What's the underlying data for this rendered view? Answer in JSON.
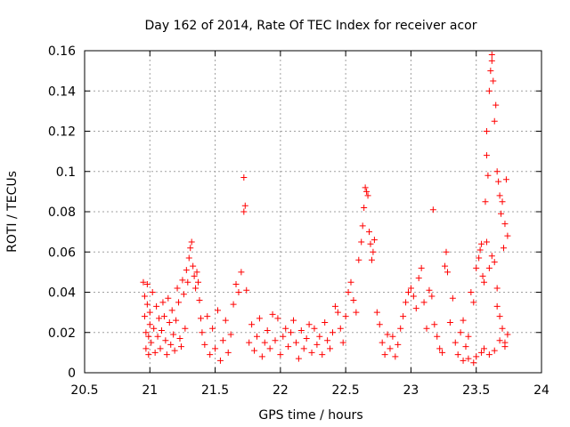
{
  "chart_data": {
    "type": "scatter",
    "title": "Day 162 of 2014, Rate Of TEC Index for receiver acor",
    "xlabel": "GPS time / hours",
    "ylabel": "ROTI / TECUs",
    "xlim": [
      20.5,
      24
    ],
    "ylim": [
      0,
      0.16
    ],
    "xticks": [
      20.5,
      21,
      21.5,
      22,
      22.5,
      23,
      23.5,
      24
    ],
    "xtick_labels": [
      "20.5",
      "21",
      "21.5",
      "22",
      "22.5",
      "23",
      "23.5",
      "24"
    ],
    "yticks": [
      0,
      0.02,
      0.04,
      0.06,
      0.08,
      0.1,
      0.12,
      0.14,
      0.16
    ],
    "ytick_labels": [
      "0",
      "0.02",
      "0.04",
      "0.06",
      "0.08",
      "0.1",
      "0.12",
      "0.14",
      "0.16"
    ],
    "grid": true,
    "marker": "+",
    "color": "#ff0000",
    "series": [
      {
        "name": "ROTI",
        "points": [
          [
            20.95,
            0.045
          ],
          [
            20.96,
            0.038
          ],
          [
            20.96,
            0.028
          ],
          [
            20.97,
            0.02
          ],
          [
            20.97,
            0.012
          ],
          [
            20.98,
            0.034
          ],
          [
            20.98,
            0.044
          ],
          [
            20.99,
            0.018
          ],
          [
            20.99,
            0.009
          ],
          [
            21.0,
            0.03
          ],
          [
            21.0,
            0.024
          ],
          [
            21.01,
            0.015
          ],
          [
            21.02,
            0.04
          ],
          [
            21.03,
            0.022
          ],
          [
            21.04,
            0.01
          ],
          [
            21.05,
            0.033
          ],
          [
            21.06,
            0.018
          ],
          [
            21.07,
            0.027
          ],
          [
            21.08,
            0.012
          ],
          [
            21.09,
            0.021
          ],
          [
            21.1,
            0.035
          ],
          [
            21.11,
            0.028
          ],
          [
            21.12,
            0.016
          ],
          [
            21.13,
            0.009
          ],
          [
            21.14,
            0.037
          ],
          [
            21.15,
            0.025
          ],
          [
            21.16,
            0.014
          ],
          [
            21.17,
            0.031
          ],
          [
            21.18,
            0.019
          ],
          [
            21.19,
            0.011
          ],
          [
            21.2,
            0.026
          ],
          [
            21.21,
            0.042
          ],
          [
            21.22,
            0.035
          ],
          [
            21.23,
            0.017
          ],
          [
            21.24,
            0.013
          ],
          [
            21.25,
            0.046
          ],
          [
            21.26,
            0.039
          ],
          [
            21.27,
            0.022
          ],
          [
            21.28,
            0.051
          ],
          [
            21.29,
            0.045
          ],
          [
            21.3,
            0.057
          ],
          [
            21.31,
            0.062
          ],
          [
            21.32,
            0.065
          ],
          [
            21.33,
            0.053
          ],
          [
            21.34,
            0.048
          ],
          [
            21.35,
            0.042
          ],
          [
            21.36,
            0.05
          ],
          [
            21.37,
            0.045
          ],
          [
            21.38,
            0.036
          ],
          [
            21.39,
            0.027
          ],
          [
            21.4,
            0.02
          ],
          [
            21.42,
            0.014
          ],
          [
            21.44,
            0.028
          ],
          [
            21.46,
            0.009
          ],
          [
            21.48,
            0.022
          ],
          [
            21.5,
            0.012
          ],
          [
            21.52,
            0.031
          ],
          [
            21.54,
            0.006
          ],
          [
            21.56,
            0.016
          ],
          [
            21.58,
            0.026
          ],
          [
            21.6,
            0.01
          ],
          [
            21.62,
            0.019
          ],
          [
            21.64,
            0.034
          ],
          [
            21.66,
            0.044
          ],
          [
            21.68,
            0.04
          ],
          [
            21.7,
            0.05
          ],
          [
            21.72,
            0.08
          ],
          [
            21.72,
            0.097
          ],
          [
            21.73,
            0.083
          ],
          [
            21.74,
            0.041
          ],
          [
            21.76,
            0.015
          ],
          [
            21.78,
            0.024
          ],
          [
            21.8,
            0.011
          ],
          [
            21.82,
            0.018
          ],
          [
            21.84,
            0.027
          ],
          [
            21.86,
            0.008
          ],
          [
            21.88,
            0.015
          ],
          [
            21.9,
            0.021
          ],
          [
            21.92,
            0.012
          ],
          [
            21.94,
            0.029
          ],
          [
            21.96,
            0.016
          ],
          [
            21.98,
            0.027
          ],
          [
            22.0,
            0.009
          ],
          [
            22.02,
            0.018
          ],
          [
            22.04,
            0.022
          ],
          [
            22.06,
            0.013
          ],
          [
            22.08,
            0.02
          ],
          [
            22.1,
            0.026
          ],
          [
            22.12,
            0.015
          ],
          [
            22.14,
            0.007
          ],
          [
            22.16,
            0.021
          ],
          [
            22.18,
            0.012
          ],
          [
            22.2,
            0.017
          ],
          [
            22.22,
            0.024
          ],
          [
            22.24,
            0.01
          ],
          [
            22.26,
            0.022
          ],
          [
            22.28,
            0.014
          ],
          [
            22.3,
            0.018
          ],
          [
            22.32,
            0.009
          ],
          [
            22.34,
            0.025
          ],
          [
            22.36,
            0.016
          ],
          [
            22.38,
            0.012
          ],
          [
            22.4,
            0.02
          ],
          [
            22.42,
            0.033
          ],
          [
            22.44,
            0.03
          ],
          [
            22.46,
            0.022
          ],
          [
            22.48,
            0.015
          ],
          [
            22.5,
            0.028
          ],
          [
            22.52,
            0.04
          ],
          [
            22.54,
            0.045
          ],
          [
            22.56,
            0.036
          ],
          [
            22.58,
            0.03
          ],
          [
            22.6,
            0.056
          ],
          [
            22.62,
            0.065
          ],
          [
            22.63,
            0.073
          ],
          [
            22.64,
            0.082
          ],
          [
            22.65,
            0.092
          ],
          [
            22.66,
            0.09
          ],
          [
            22.67,
            0.088
          ],
          [
            22.68,
            0.07
          ],
          [
            22.69,
            0.064
          ],
          [
            22.7,
            0.056
          ],
          [
            22.71,
            0.06
          ],
          [
            22.72,
            0.066
          ],
          [
            22.74,
            0.03
          ],
          [
            22.76,
            0.024
          ],
          [
            22.78,
            0.015
          ],
          [
            22.8,
            0.009
          ],
          [
            22.82,
            0.019
          ],
          [
            22.84,
            0.012
          ],
          [
            22.86,
            0.018
          ],
          [
            22.88,
            0.008
          ],
          [
            22.9,
            0.014
          ],
          [
            22.92,
            0.022
          ],
          [
            22.94,
            0.028
          ],
          [
            22.96,
            0.035
          ],
          [
            22.98,
            0.04
          ],
          [
            23.0,
            0.042
          ],
          [
            23.02,
            0.038
          ],
          [
            23.04,
            0.032
          ],
          [
            23.06,
            0.047
          ],
          [
            23.08,
            0.052
          ],
          [
            23.1,
            0.035
          ],
          [
            23.12,
            0.022
          ],
          [
            23.14,
            0.041
          ],
          [
            23.16,
            0.038
          ],
          [
            23.17,
            0.081
          ],
          [
            23.18,
            0.024
          ],
          [
            23.2,
            0.018
          ],
          [
            23.22,
            0.012
          ],
          [
            23.24,
            0.01
          ],
          [
            23.26,
            0.053
          ],
          [
            23.27,
            0.06
          ],
          [
            23.28,
            0.05
          ],
          [
            23.3,
            0.025
          ],
          [
            23.32,
            0.037
          ],
          [
            23.34,
            0.015
          ],
          [
            23.36,
            0.009
          ],
          [
            23.38,
            0.02
          ],
          [
            23.4,
            0.026
          ],
          [
            23.42,
            0.013
          ],
          [
            23.44,
            0.018
          ],
          [
            23.46,
            0.04
          ],
          [
            23.48,
            0.035
          ],
          [
            23.5,
            0.052
          ],
          [
            23.52,
            0.057
          ],
          [
            23.53,
            0.061
          ],
          [
            23.54,
            0.064
          ],
          [
            23.55,
            0.048
          ],
          [
            23.56,
            0.045
          ],
          [
            23.57,
            0.085
          ],
          [
            23.58,
            0.12
          ],
          [
            23.58,
            0.108
          ],
          [
            23.59,
            0.098
          ],
          [
            23.6,
            0.14
          ],
          [
            23.61,
            0.15
          ],
          [
            23.62,
            0.158
          ],
          [
            23.62,
            0.155
          ],
          [
            23.63,
            0.145
          ],
          [
            23.64,
            0.125
          ],
          [
            23.65,
            0.133
          ],
          [
            23.66,
            0.1
          ],
          [
            23.67,
            0.095
          ],
          [
            23.68,
            0.088
          ],
          [
            23.69,
            0.079
          ],
          [
            23.7,
            0.085
          ],
          [
            23.71,
            0.062
          ],
          [
            23.72,
            0.074
          ],
          [
            23.73,
            0.096
          ],
          [
            23.74,
            0.068
          ],
          [
            23.58,
            0.065
          ],
          [
            23.6,
            0.052
          ],
          [
            23.62,
            0.058
          ],
          [
            23.64,
            0.055
          ],
          [
            23.66,
            0.042
          ],
          [
            23.68,
            0.028
          ],
          [
            23.7,
            0.022
          ],
          [
            23.72,
            0.015
          ],
          [
            23.74,
            0.019
          ],
          [
            23.66,
            0.033
          ],
          [
            23.56,
            0.012
          ],
          [
            23.6,
            0.009
          ],
          [
            23.64,
            0.011
          ],
          [
            23.68,
            0.016
          ],
          [
            23.72,
            0.013
          ],
          [
            23.5,
            0.008
          ],
          [
            23.54,
            0.01
          ],
          [
            23.48,
            0.005
          ],
          [
            23.44,
            0.007
          ],
          [
            23.4,
            0.006
          ]
        ]
      }
    ]
  }
}
